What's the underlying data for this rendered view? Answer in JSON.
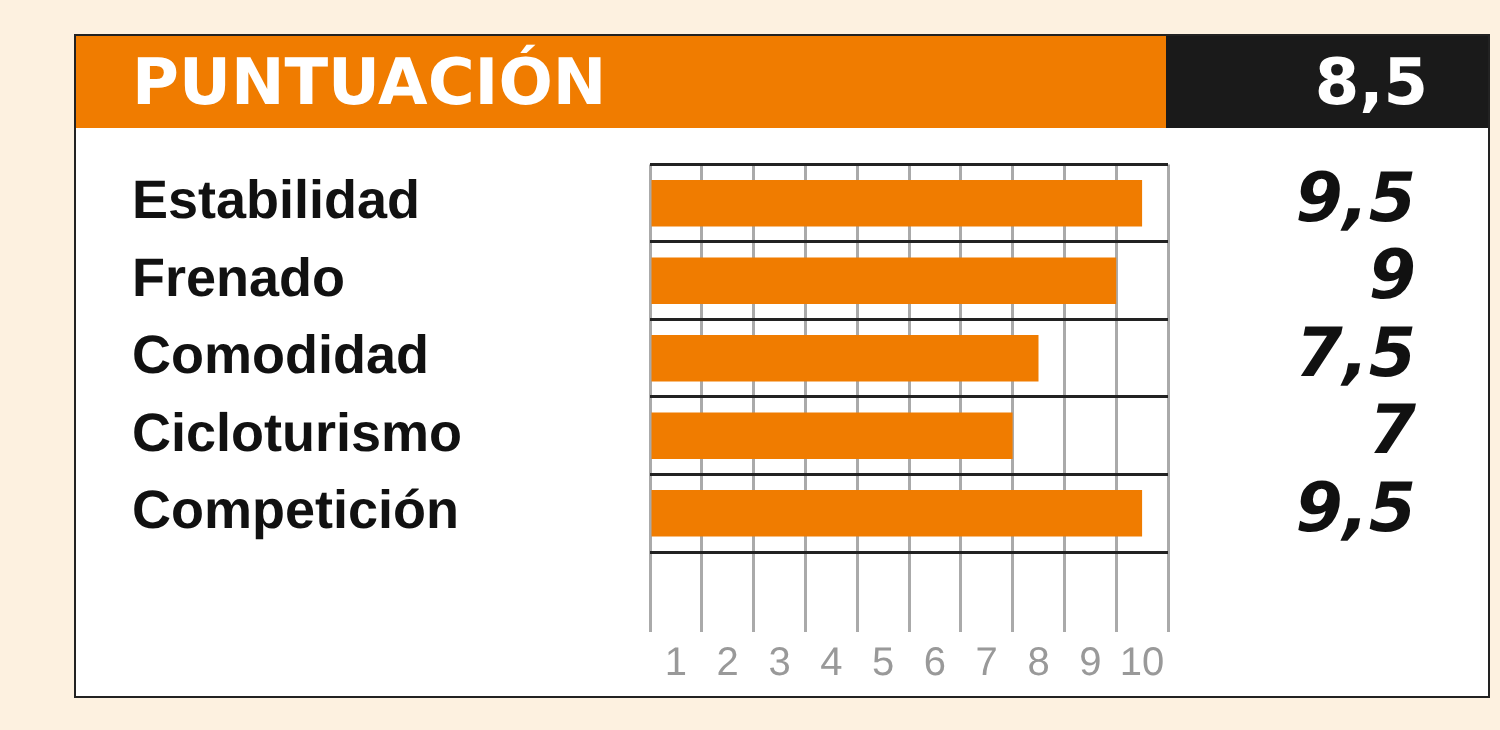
{
  "chart_data": {
    "type": "bar",
    "orientation": "horizontal",
    "title": "PUNTUACIÓN",
    "annotations": [
      "8,5"
    ],
    "categories": [
      "Estabilidad",
      "Frenado",
      "Comodidad",
      "Cicloturismo",
      "Competición"
    ],
    "values": [
      9.5,
      9,
      7.5,
      7,
      9.5
    ],
    "color": "#f07c00",
    "value_labels": [
      "9,5",
      "9",
      "7,5",
      "7",
      "9,5"
    ],
    "xlim": [
      0,
      10
    ],
    "xticks": [
      {
        "value": 0,
        "label": null
      },
      {
        "value": 0.5,
        "label": "1"
      },
      {
        "value": 1,
        "label": null
      },
      {
        "value": 1.5,
        "label": "2"
      },
      {
        "value": 2,
        "label": null
      },
      {
        "value": 2.5,
        "label": "3"
      },
      {
        "value": 3,
        "label": null
      },
      {
        "value": 3.5,
        "label": "4"
      },
      {
        "value": 4,
        "label": null
      },
      {
        "value": 4.5,
        "label": "5"
      },
      {
        "value": 5,
        "label": null
      },
      {
        "value": 5.5,
        "label": "6"
      },
      {
        "value": 6,
        "label": null
      },
      {
        "value": 6.5,
        "label": "7"
      },
      {
        "value": 7,
        "label": null
      },
      {
        "value": 7.5,
        "label": "8"
      },
      {
        "value": 8,
        "label": null
      },
      {
        "value": 8.5,
        "label": "9"
      },
      {
        "value": 9,
        "label": null
      },
      {
        "value": 9.5,
        "label": "10"
      },
      {
        "value": 10,
        "label": null
      }
    ],
    "grid": true
  }
}
